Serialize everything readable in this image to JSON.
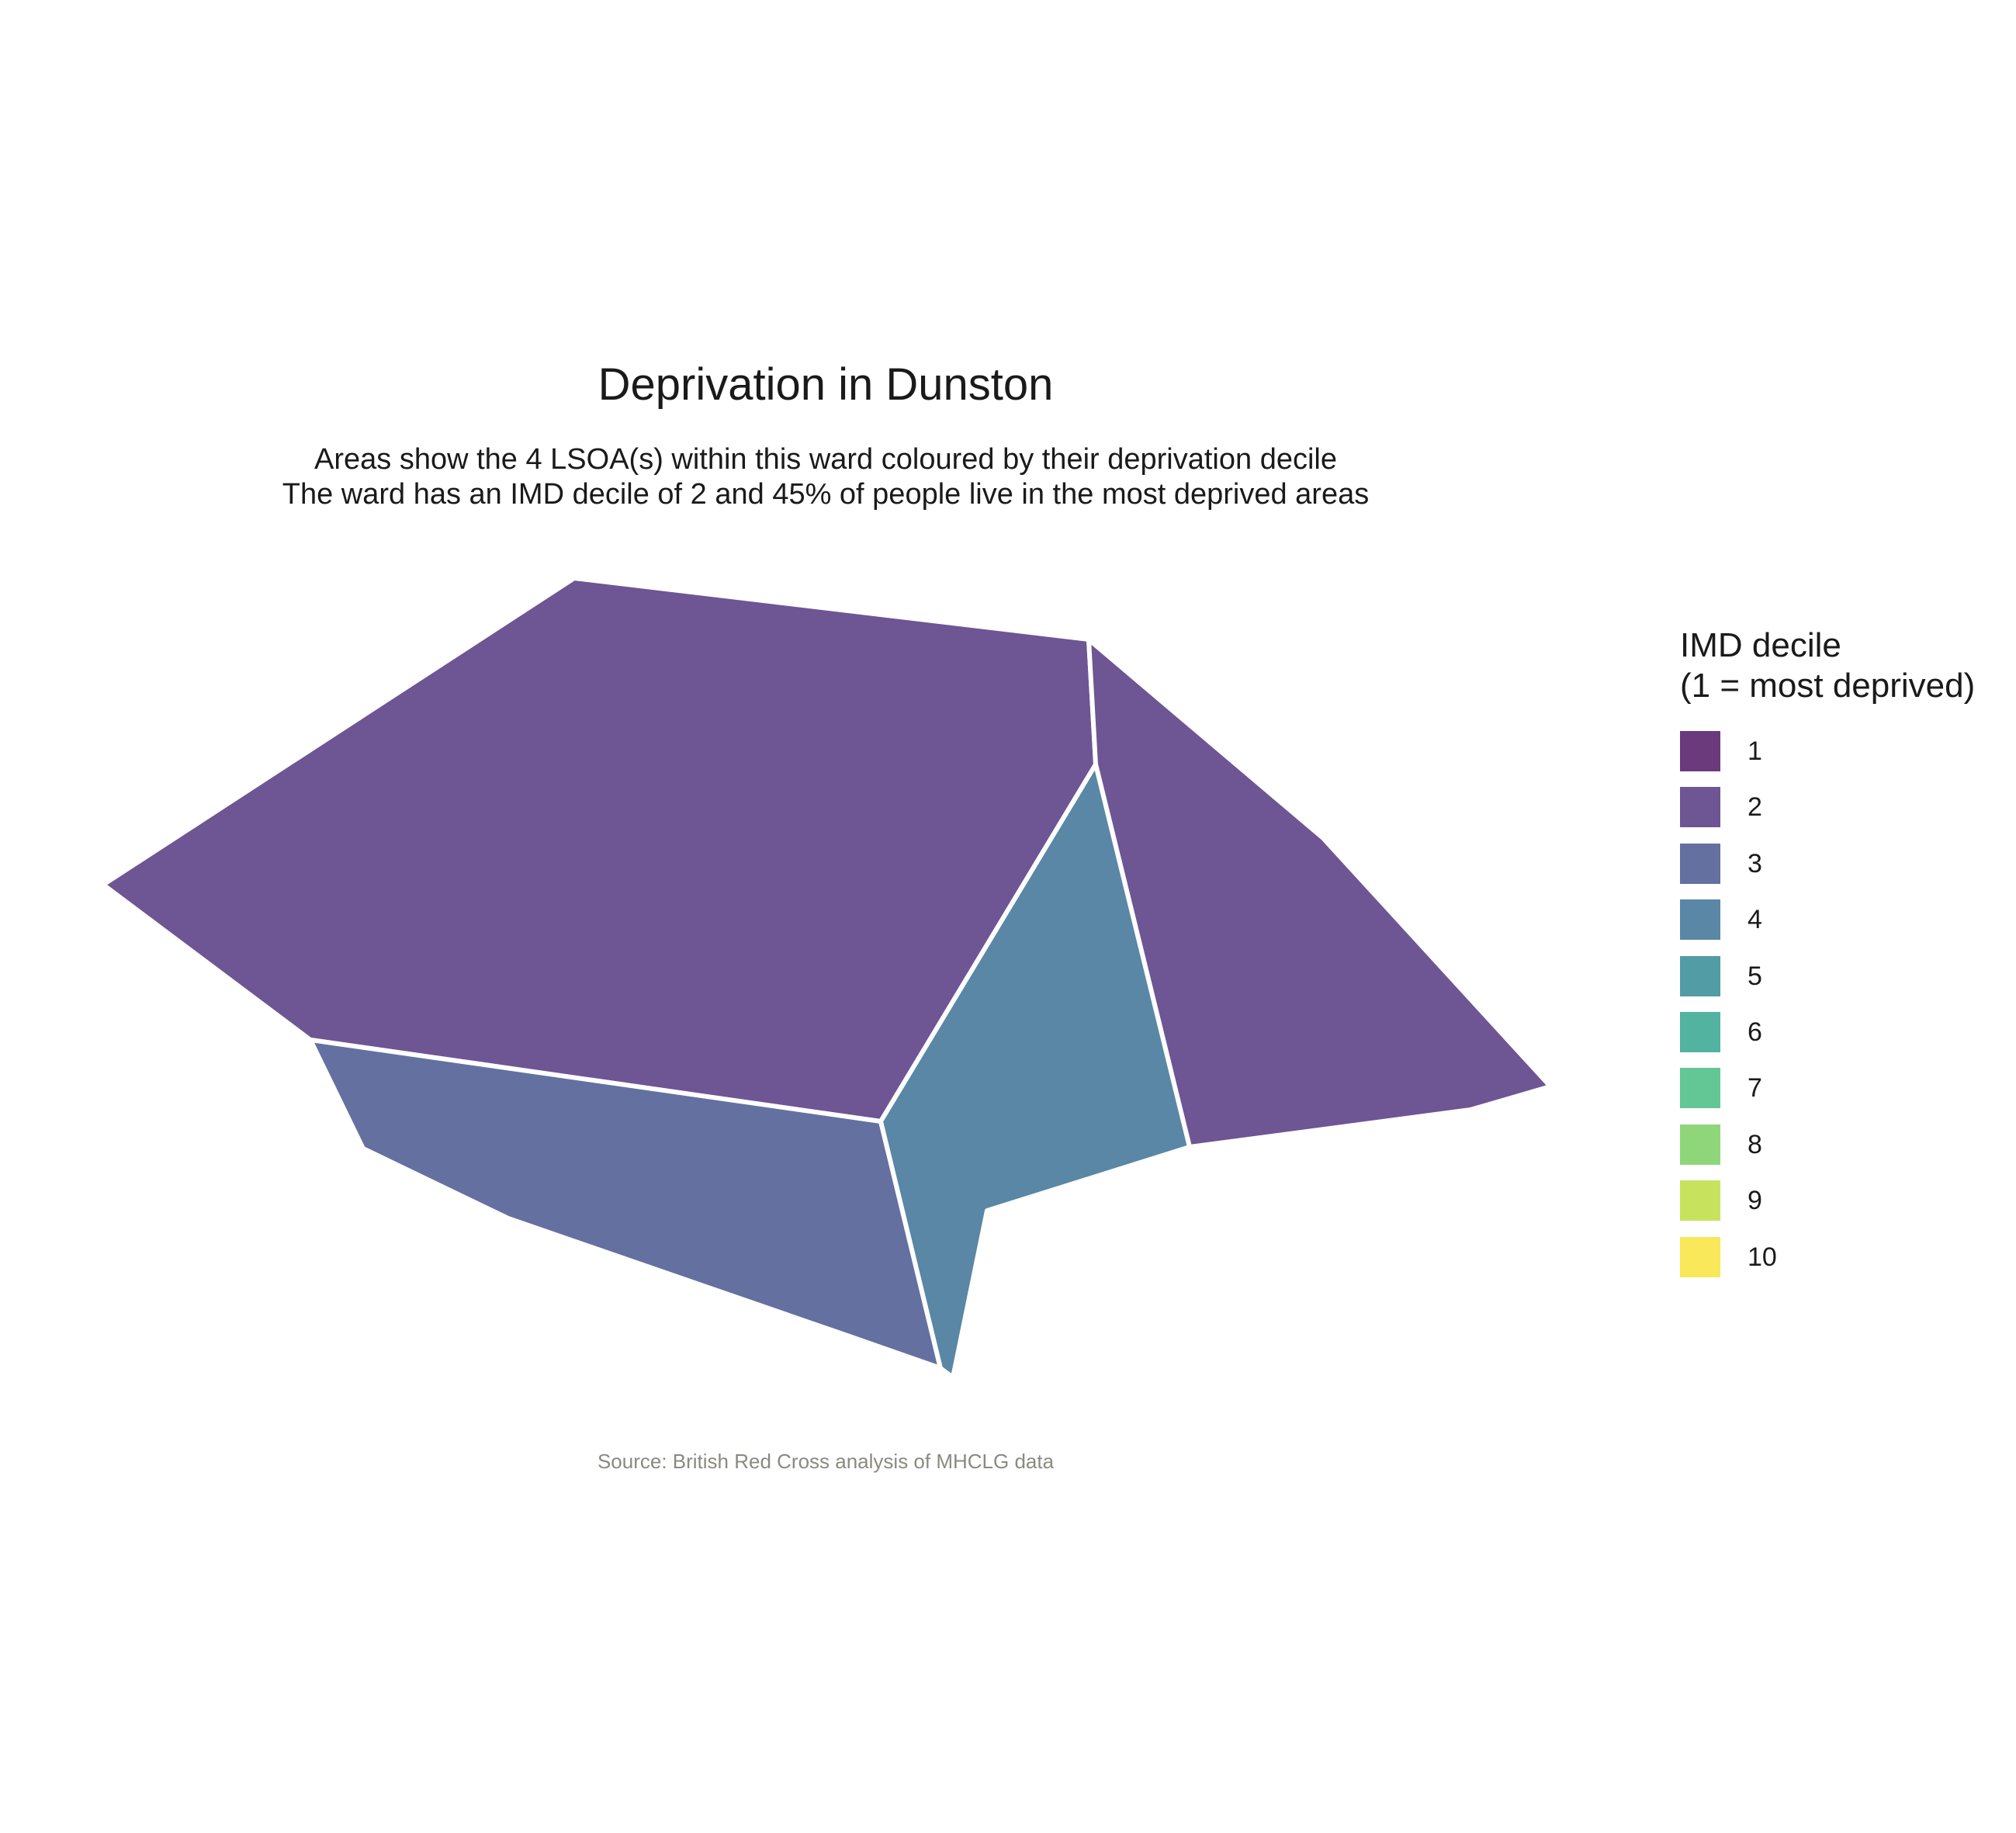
{
  "title": "Deprivation in Dunston",
  "subtitle": {
    "line1": "Areas show the 4 LSOA(s) within this ward coloured by their deprivation decile",
    "line2": "The ward has an IMD decile of 2 and 45% of people live in the most deprived areas"
  },
  "source": "Source: British Red Cross analysis of MHCLG data",
  "legend": {
    "title_line1": "IMD decile",
    "title_line2": "(1 = most deprived)",
    "items": [
      {
        "label": "1",
        "color": "#6b3a7d"
      },
      {
        "label": "2",
        "color": "#6e5594"
      },
      {
        "label": "3",
        "color": "#6470a0"
      },
      {
        "label": "4",
        "color": "#5987a5"
      },
      {
        "label": "5",
        "color": "#529da5"
      },
      {
        "label": "6",
        "color": "#52b3a0"
      },
      {
        "label": "7",
        "color": "#62c794"
      },
      {
        "label": "8",
        "color": "#8fd67b"
      },
      {
        "label": "9",
        "color": "#c7e35e"
      },
      {
        "label": "10",
        "color": "#f8e85a"
      }
    ]
  },
  "areas": [
    {
      "name": "north-west",
      "decile": 2,
      "color": "#6e5594"
    },
    {
      "name": "east",
      "decile": 2,
      "color": "#6e5594"
    },
    {
      "name": "south-west",
      "decile": 3,
      "color": "#6470a0"
    },
    {
      "name": "south-central",
      "decile": 4,
      "color": "#5987a5"
    }
  ]
}
